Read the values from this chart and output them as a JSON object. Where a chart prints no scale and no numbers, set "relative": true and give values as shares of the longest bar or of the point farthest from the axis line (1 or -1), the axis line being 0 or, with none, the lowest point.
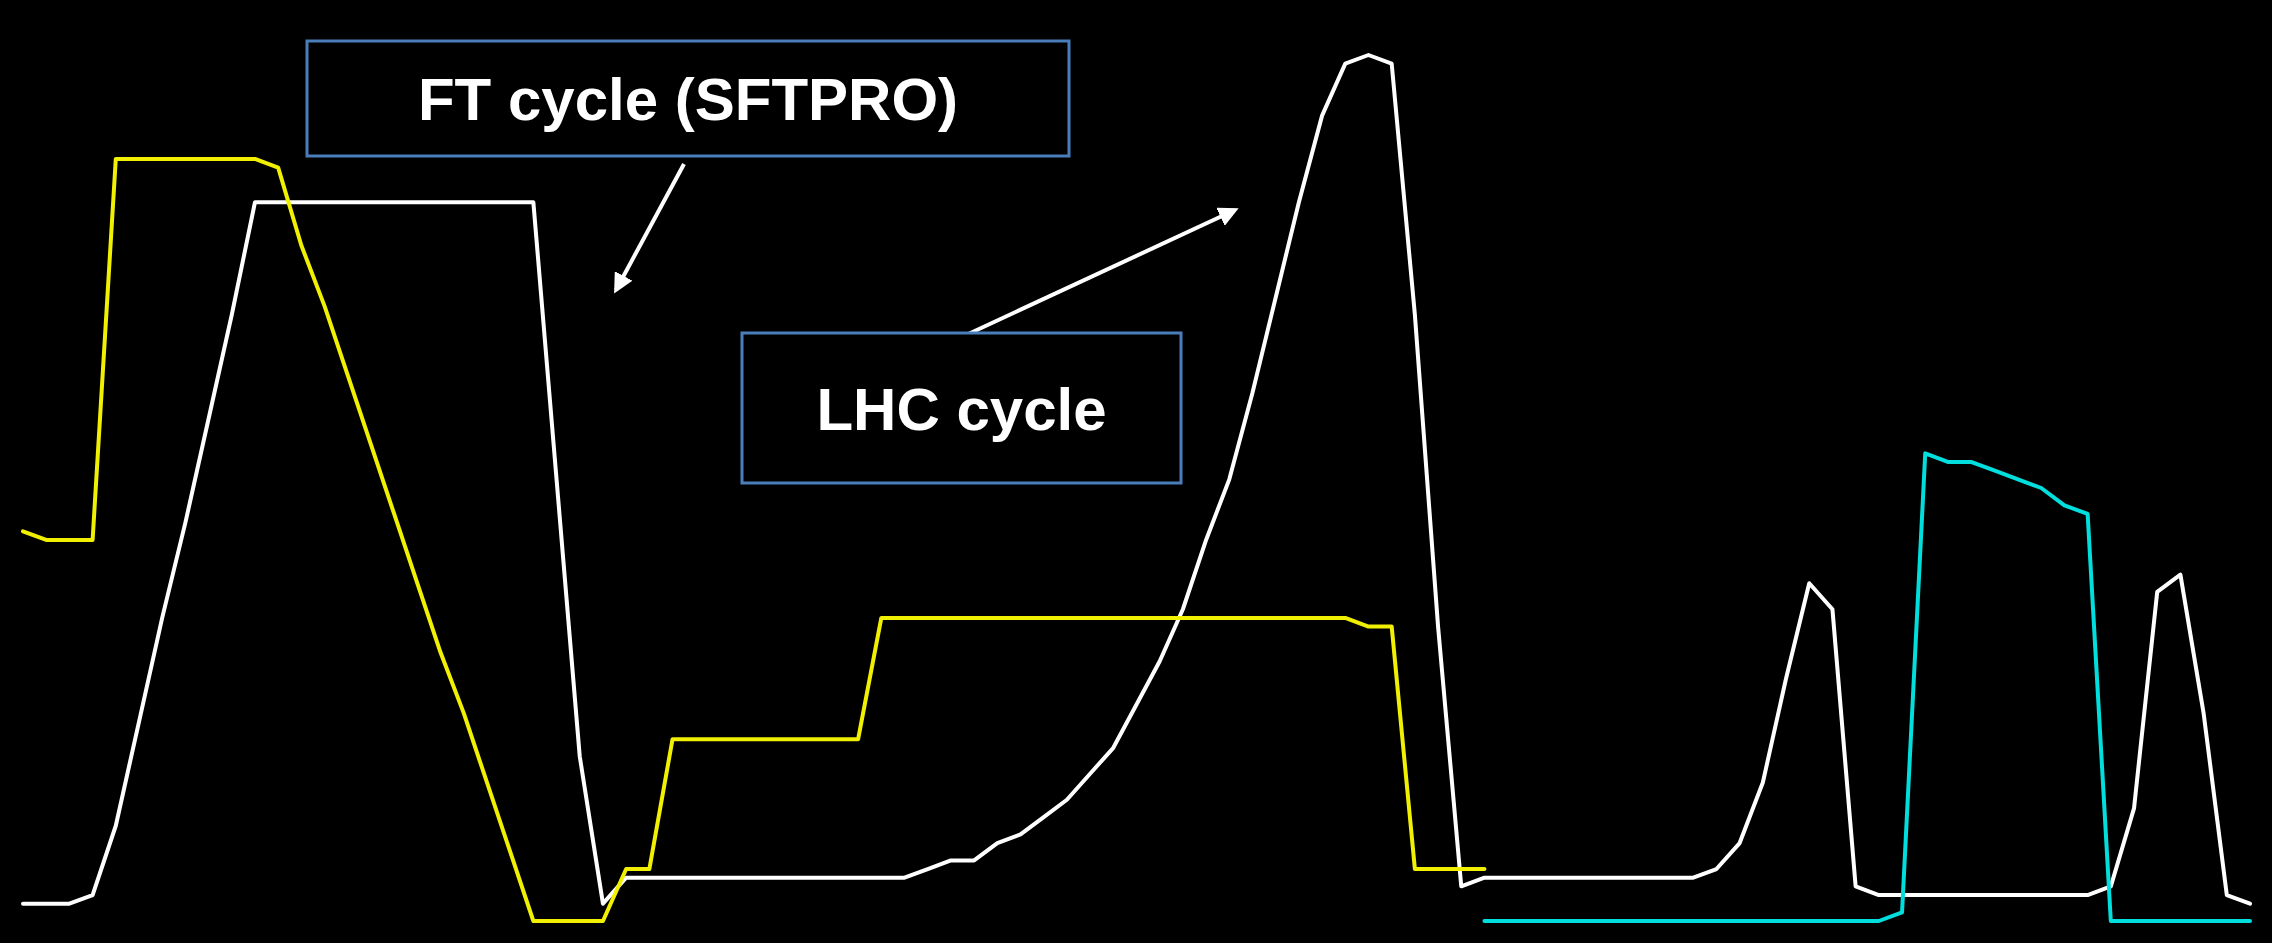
{
  "chart_data": {
    "type": "line",
    "relative": true,
    "categories": [
      null,
      null,
      null,
      null,
      null,
      null,
      null,
      null,
      null,
      null,
      null,
      null,
      null,
      null,
      null,
      null,
      null,
      null,
      null,
      null,
      null,
      null,
      null,
      null,
      null,
      null,
      null,
      null,
      null,
      null,
      null,
      null,
      null,
      null,
      null,
      null,
      null,
      null,
      null,
      null,
      null,
      null,
      null,
      null,
      null,
      null,
      null,
      null,
      null,
      null,
      null,
      null,
      null,
      null,
      null,
      null,
      null,
      null,
      null,
      null,
      null,
      null,
      null,
      null,
      null,
      null,
      null,
      null,
      null,
      null,
      null,
      null,
      null,
      null,
      null,
      null,
      null,
      null,
      null,
      null,
      null,
      null,
      null,
      null,
      null,
      null,
      null,
      null,
      null,
      null,
      null,
      null,
      null,
      null,
      null,
      null,
      null
    ],
    "series": [
      {
        "color": "#ffffff",
        "values": [
          0.02,
          0.02,
          0.02,
          0.03,
          0.11,
          0.23,
          0.35,
          0.46,
          0.58,
          0.7,
          0.83,
          0.83,
          0.83,
          0.83,
          0.83,
          0.83,
          0.83,
          0.83,
          0.83,
          0.83,
          0.83,
          0.83,
          0.83,
          0.51,
          0.19,
          0.02,
          0.05,
          0.05,
          0.05,
          0.05,
          0.05,
          0.05,
          0.05,
          0.05,
          0.05,
          0.05,
          0.05,
          0.05,
          0.05,
          0.06,
          0.07,
          0.07,
          0.09,
          0.1,
          0.12,
          0.14,
          0.17,
          0.2,
          0.25,
          0.3,
          0.36,
          0.44,
          0.51,
          0.61,
          0.72,
          0.83,
          0.93,
          0.99,
          1,
          0.99,
          0.7,
          0.34,
          0.04,
          0.05,
          0.05,
          0.05,
          0.05,
          0.05,
          0.05,
          0.05,
          0.05,
          0.05,
          0.05,
          0.06,
          0.09,
          0.16,
          0.28,
          0.39,
          0.36,
          0.04,
          0.03,
          0.03,
          0.03,
          0.03,
          0.03,
          0.03,
          0.03,
          0.03,
          0.03,
          0.03,
          0.04,
          0.13,
          0.38,
          0.4,
          0.24,
          0.03,
          0.02
        ]
      },
      {
        "color": "#f0f000",
        "values": [
          0.45,
          0.44,
          0.44,
          0.44,
          0.88,
          0.88,
          0.88,
          0.88,
          0.88,
          0.88,
          0.88,
          0.87,
          0.78,
          0.71,
          0.63,
          0.55,
          0.47,
          0.39,
          0.31,
          0.24,
          0.16,
          0.08,
          0,
          0,
          0,
          0,
          0.06,
          0.06,
          0.21,
          0.21,
          0.21,
          0.21,
          0.21,
          0.21,
          0.21,
          0.21,
          0.21,
          0.35,
          0.35,
          0.35,
          0.35,
          0.35,
          0.35,
          0.35,
          0.35,
          0.35,
          0.35,
          0.35,
          0.35,
          0.35,
          0.35,
          0.35,
          0.35,
          0.35,
          0.35,
          0.35,
          0.35,
          0.35,
          0.34,
          0.34,
          0.06,
          0.06,
          0.06,
          0.06,
          null,
          null,
          null,
          null,
          null,
          null,
          null,
          null,
          null,
          null,
          null,
          null,
          null,
          null,
          null,
          null,
          null,
          null,
          null,
          null,
          null,
          null,
          null,
          null,
          null,
          null,
          null,
          null,
          null,
          null,
          null,
          null,
          null
        ]
      },
      {
        "color": "#00dede",
        "values": [
          null,
          null,
          null,
          null,
          null,
          null,
          null,
          null,
          null,
          null,
          null,
          null,
          null,
          null,
          null,
          null,
          null,
          null,
          null,
          null,
          null,
          null,
          null,
          null,
          null,
          null,
          null,
          null,
          null,
          null,
          null,
          null,
          null,
          null,
          null,
          null,
          null,
          null,
          null,
          null,
          null,
          null,
          null,
          null,
          null,
          null,
          null,
          null,
          null,
          null,
          null,
          null,
          null,
          null,
          null,
          null,
          null,
          null,
          null,
          null,
          null,
          null,
          null,
          0,
          0,
          0,
          0,
          0,
          0,
          0,
          0,
          0,
          0,
          0,
          0,
          0,
          0,
          0,
          0,
          0,
          0,
          0.01,
          0.54,
          0.53,
          0.53,
          0.52,
          0.51,
          0.5,
          0.48,
          0.47,
          0,
          0,
          0,
          0,
          0,
          0,
          0
        ]
      }
    ],
    "annotations": [
      "FT cycle (SFTPRO)",
      "LHC cycle"
    ],
    "line_style": "solid",
    "marker": "none"
  }
}
